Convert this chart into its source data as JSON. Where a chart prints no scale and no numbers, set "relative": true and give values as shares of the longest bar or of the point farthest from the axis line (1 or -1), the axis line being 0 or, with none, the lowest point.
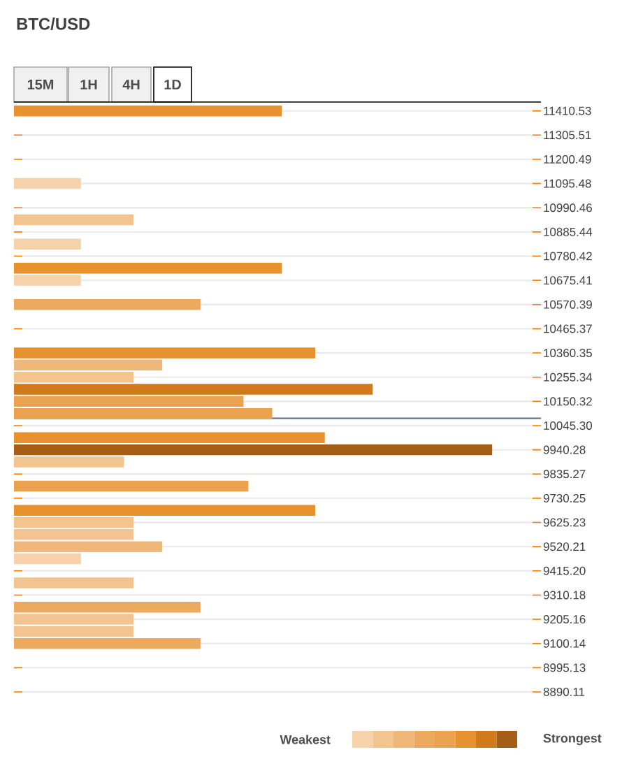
{
  "chart_data": {
    "type": "bar",
    "orientation": "horizontal",
    "relative": true,
    "title": "BTC/USD",
    "annotations": [
      "15M",
      "1H",
      "4H",
      "1D",
      "Weakest",
      "Strongest"
    ],
    "ylim": [
      8890.11,
      11436.8
    ],
    "yticks": [
      11410.53,
      11305.51,
      11200.49,
      11095.48,
      10990.46,
      10885.44,
      10780.42,
      10675.41,
      10570.39,
      10465.37,
      10360.35,
      10255.34,
      10150.32,
      {
        "value": 10045.3,
        "label": "10045.30"
      },
      9940.28,
      9835.27,
      9730.25,
      9625.23,
      9520.21,
      {
        "value": 9415.2,
        "label": "9415.20"
      },
      9310.18,
      9205.16,
      9100.14,
      8995.13,
      8890.11
    ],
    "x": [
      11410.53,
      11095.48,
      10937.95,
      10832.93,
      10727.92,
      10675.41,
      10570.39,
      10360.35,
      10307.85,
      10255.34,
      10202.83,
      10150.32,
      10097.81,
      9992.79,
      9940.28,
      9887.78,
      9782.76,
      9677.74,
      9625.23,
      9572.72,
      9520.21,
      9467.71,
      9362.69,
      9257.67,
      9205.16,
      9152.65,
      9100.14
    ],
    "values": [
      0.56,
      0.14,
      0.25,
      0.14,
      0.56,
      0.14,
      0.39,
      0.63,
      0.31,
      0.25,
      0.75,
      0.48,
      0.54,
      0.65,
      1,
      0.23,
      0.49,
      0.63,
      0.25,
      0.25,
      0.31,
      0.14,
      0.25,
      0.39,
      0.25,
      0.25,
      0.39
    ],
    "colors": [
      "#e8922f",
      "#f6d2aa",
      "#f2c490",
      "#f6d2aa",
      "#e8922f",
      "#f6d2aa",
      "#ecaa5e",
      "#e8922f",
      "#efb87a",
      "#f2c490",
      "#d07a1c",
      "#eaa24e",
      "#eaa24e",
      "#e8922f",
      "#a65e14",
      "#f2c490",
      "#eaa24e",
      "#e8922f",
      "#f2c490",
      "#f2c490",
      "#efb87a",
      "#f6d2aa",
      "#f2c490",
      "#ecaa5e",
      "#f2c490",
      "#f2c490",
      "#ecaa5e"
    ],
    "ref_lines": [
      {
        "axis": "y",
        "value": 10077,
        "color": "#5a6a85"
      }
    ],
    "grid": "y"
  }
}
